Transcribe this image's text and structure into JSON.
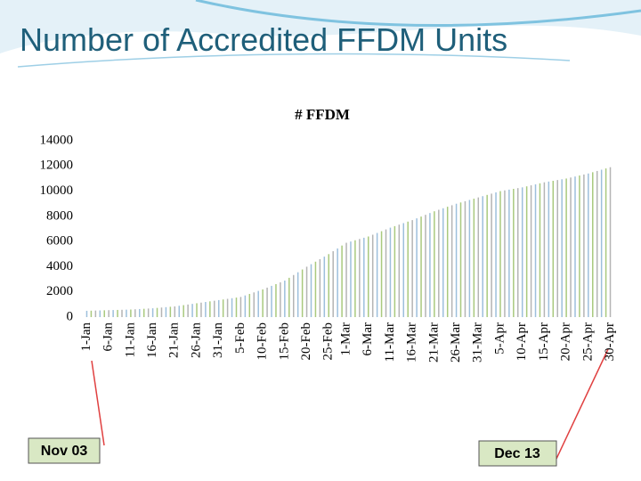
{
  "chart_data": {
    "type": "bar",
    "title": "Number of Accredited FFDM Units",
    "subtitle": "# FFDM",
    "annotations": [
      "Nov 03",
      "Dec 13"
    ],
    "categories": [
      "1-Jan",
      null,
      null,
      null,
      null,
      "6-Jan",
      null,
      null,
      null,
      null,
      "11-Jan",
      null,
      null,
      null,
      null,
      "16-Jan",
      null,
      null,
      null,
      null,
      "21-Jan",
      null,
      null,
      null,
      null,
      "26-Jan",
      null,
      null,
      null,
      null,
      "31-Jan",
      null,
      null,
      null,
      null,
      "5-Feb",
      null,
      null,
      null,
      null,
      "10-Feb",
      null,
      null,
      null,
      null,
      "15-Feb",
      null,
      null,
      null,
      null,
      "20-Feb",
      null,
      null,
      null,
      null,
      "25-Feb",
      null,
      null,
      null,
      "1-Mar",
      null,
      null,
      null,
      null,
      "6-Mar",
      null,
      null,
      null,
      null,
      "11-Mar",
      null,
      null,
      null,
      null,
      "16-Mar",
      null,
      null,
      null,
      null,
      "21-Mar",
      null,
      null,
      null,
      null,
      "26-Mar",
      null,
      null,
      null,
      null,
      "31-Mar",
      null,
      null,
      null,
      null,
      "5-Apr",
      null,
      null,
      null,
      null,
      "10-Apr",
      null,
      null,
      null,
      null,
      "15-Apr",
      null,
      null,
      null,
      null,
      "20-Apr",
      null,
      null,
      null,
      null,
      "25-Apr",
      null,
      null,
      null,
      null,
      "30-Apr"
    ],
    "values": [
      500,
      510,
      520,
      530,
      540,
      550,
      560,
      570,
      580,
      590,
      600,
      620,
      640,
      660,
      680,
      700,
      730,
      760,
      790,
      820,
      850,
      900,
      950,
      1000,
      1050,
      1100,
      1150,
      1200,
      1250,
      1300,
      1350,
      1400,
      1450,
      1500,
      1550,
      1600,
      1720,
      1840,
      1960,
      2080,
      2200,
      2340,
      2480,
      2620,
      2760,
      2900,
      3120,
      3340,
      3560,
      3780,
      4000,
      4200,
      4400,
      4600,
      4800,
      5000,
      5230,
      5450,
      5680,
      5900,
      6000,
      6100,
      6200,
      6300,
      6400,
      6540,
      6680,
      6820,
      6960,
      7100,
      7220,
      7340,
      7460,
      7580,
      7700,
      7840,
      7980,
      8120,
      8260,
      8400,
      8520,
      8640,
      8760,
      8880,
      9000,
      9100,
      9200,
      9300,
      9400,
      9500,
      9600,
      9700,
      9800,
      9900,
      10000,
      10060,
      10120,
      10180,
      10240,
      10300,
      10380,
      10460,
      10540,
      10620,
      10700,
      10760,
      10820,
      10880,
      10940,
      11000,
      11080,
      11160,
      11240,
      11320,
      11400,
      11500,
      11600,
      11700,
      11800,
      11900
    ],
    "colors": [
      "#9dbfdc",
      "#a9c97e",
      "#b4b4b4"
    ],
    "ylim": [
      0,
      14000
    ],
    "yticks": [
      0,
      2000,
      4000,
      6000,
      8000,
      10000,
      12000,
      14000
    ],
    "grid": false
  }
}
